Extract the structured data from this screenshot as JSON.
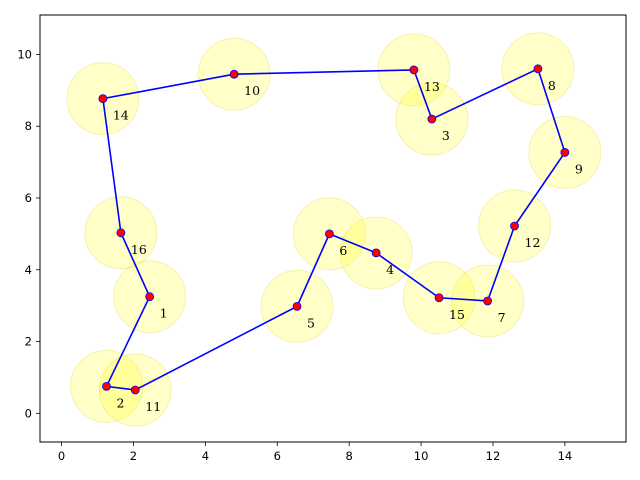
{
  "chart_data": {
    "type": "scatter",
    "title": "",
    "xlabel": "",
    "ylabel": "",
    "xlim": [
      -0.6,
      15.7
    ],
    "ylim": [
      -0.8,
      11.1
    ],
    "x_ticks": [
      0,
      2,
      4,
      6,
      8,
      10,
      12,
      14
    ],
    "y_ticks": [
      0,
      2,
      4,
      6,
      8,
      10
    ],
    "grid": false,
    "legend": "none",
    "points": [
      {
        "label": "1",
        "x": 2.45,
        "y": 3.25
      },
      {
        "label": "2",
        "x": 1.25,
        "y": 0.75
      },
      {
        "label": "3",
        "x": 10.3,
        "y": 8.2
      },
      {
        "label": "4",
        "x": 8.75,
        "y": 4.47
      },
      {
        "label": "5",
        "x": 6.55,
        "y": 2.98
      },
      {
        "label": "6",
        "x": 7.45,
        "y": 5.0
      },
      {
        "label": "7",
        "x": 11.85,
        "y": 3.13
      },
      {
        "label": "8",
        "x": 13.25,
        "y": 9.6
      },
      {
        "label": "9",
        "x": 14.0,
        "y": 7.27
      },
      {
        "label": "10",
        "x": 4.8,
        "y": 9.45
      },
      {
        "label": "11",
        "x": 2.05,
        "y": 0.65
      },
      {
        "label": "12",
        "x": 12.6,
        "y": 5.22
      },
      {
        "label": "13",
        "x": 9.8,
        "y": 9.57
      },
      {
        "label": "14",
        "x": 1.15,
        "y": 8.77
      },
      {
        "label": "15",
        "x": 10.5,
        "y": 3.22
      },
      {
        "label": "16",
        "x": 1.65,
        "y": 5.03
      }
    ],
    "tour": [
      "2",
      "11",
      "5",
      "6",
      "4",
      "15",
      "7",
      "12",
      "9",
      "8",
      "3",
      "13",
      "10",
      "14",
      "16",
      "1",
      "2"
    ],
    "circle_radius": 1.0,
    "colors": {
      "circle_fill": "#ffff00",
      "circle_opacity": 0.22,
      "point": "#ff0000",
      "tour_line": "#0000ff",
      "axes": "#000000"
    }
  }
}
